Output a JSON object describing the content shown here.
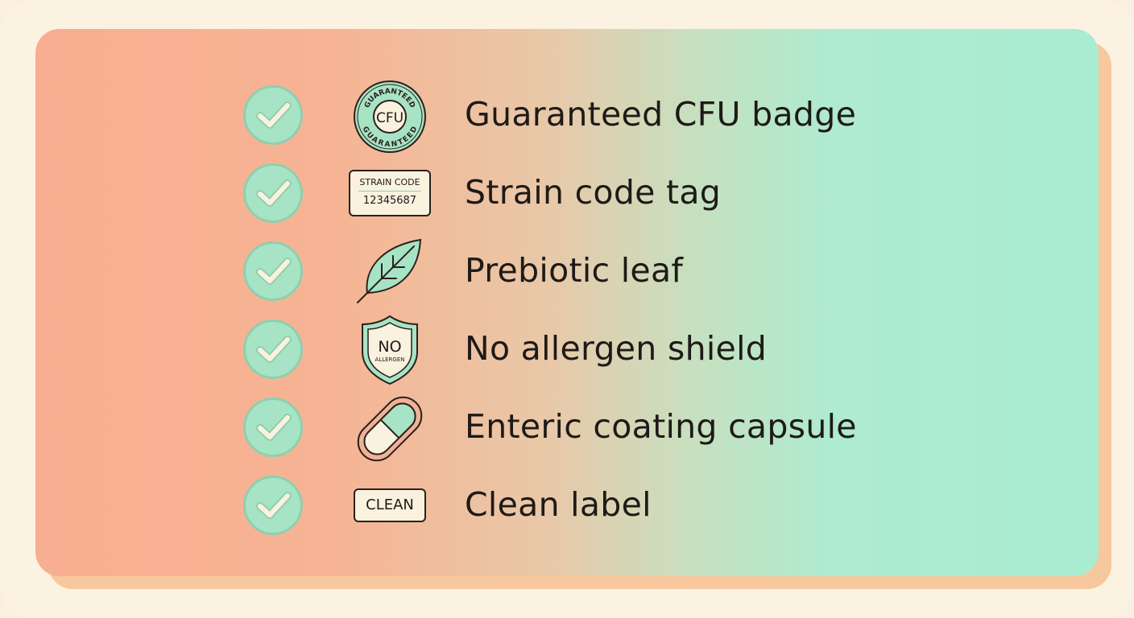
{
  "items": [
    {
      "label": "Guaranteed CFU badge",
      "icon": "cfu-badge-icon",
      "icon_text": "CFU",
      "ring_text": "GUARANTEED",
      "checked": true
    },
    {
      "label": "Strain code tag",
      "icon": "strain-code-tag-icon",
      "icon_title": "STRAIN CODE",
      "icon_code": "12345687",
      "checked": true
    },
    {
      "label": "Prebiotic leaf",
      "icon": "leaf-icon",
      "checked": true
    },
    {
      "label": "No allergen shield",
      "icon": "shield-icon",
      "icon_title": "NO",
      "icon_sub": "ALLERGEN",
      "checked": true
    },
    {
      "label": "Enteric coating capsule",
      "icon": "capsule-icon",
      "checked": true
    },
    {
      "label": "Clean label",
      "icon": "clean-label-icon",
      "icon_text": "CLEAN",
      "checked": true
    }
  ],
  "colors": {
    "check_fill": "#a7e3c5",
    "mint": "#a9ecd2",
    "peach": "#f8ae90"
  }
}
